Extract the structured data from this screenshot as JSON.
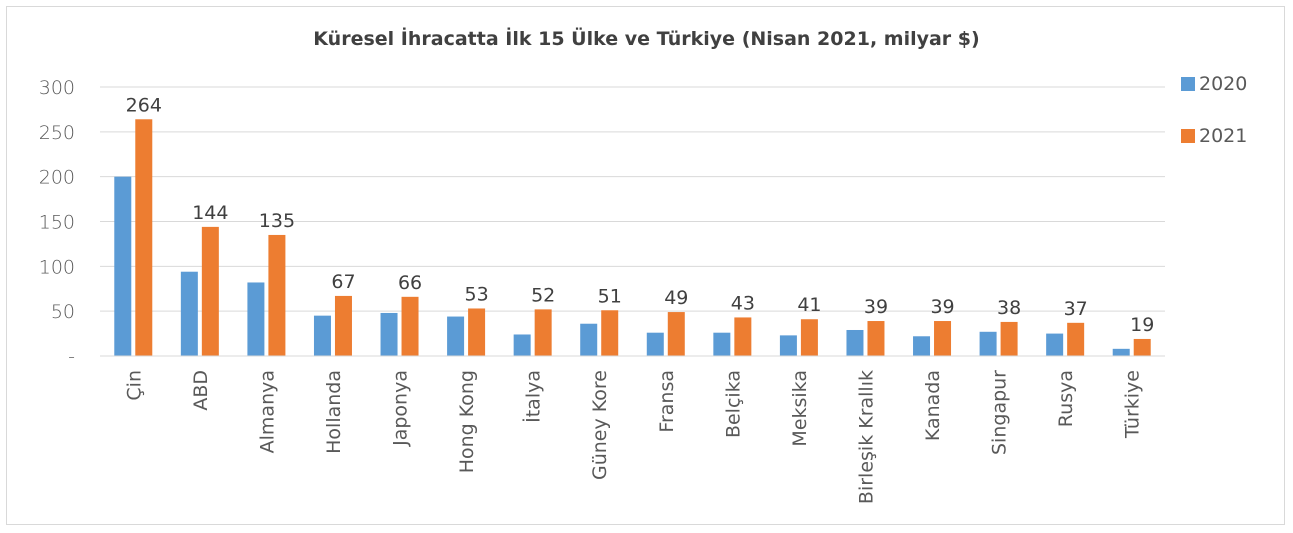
{
  "chart_data": {
    "type": "bar",
    "title": "Küresel İhracatta İlk 15 Ülke ve Türkiye (Nisan 2021, milyar $)",
    "categories": [
      "Çin",
      "ABD",
      "Almanya",
      "Hollanda",
      "Japonya",
      "Hong Kong",
      "İtalya",
      "Güney Kore",
      "Fransa",
      "Belçika",
      "Meksika",
      "Birleşik Krallık",
      "Kanada",
      "Singapur",
      "Rusya",
      "Türkiye"
    ],
    "series": [
      {
        "name": "2020",
        "color": "#5b9bd5",
        "values": [
          200,
          94,
          82,
          45,
          48,
          44,
          24,
          36,
          26,
          26,
          23,
          29,
          22,
          27,
          25,
          8
        ],
        "labels_shown": false
      },
      {
        "name": "2021",
        "color": "#ed7d31",
        "values": [
          264,
          144,
          135,
          67,
          66,
          53,
          52,
          51,
          49,
          43,
          41,
          39,
          39,
          38,
          37,
          19
        ],
        "labels_shown": true
      }
    ],
    "data_labels": [
      "264",
      "144",
      "135",
      "67",
      "66",
      "53",
      "52",
      "51",
      "49",
      "43",
      "41",
      "39",
      "39",
      "38",
      "37",
      "19"
    ],
    "y_ticks": [
      "-",
      "50",
      "100",
      "150",
      "200",
      "250",
      "300"
    ],
    "ylim": [
      0,
      300
    ],
    "grid": true,
    "legend_position": "top-right",
    "xlabel": "",
    "ylabel": ""
  }
}
